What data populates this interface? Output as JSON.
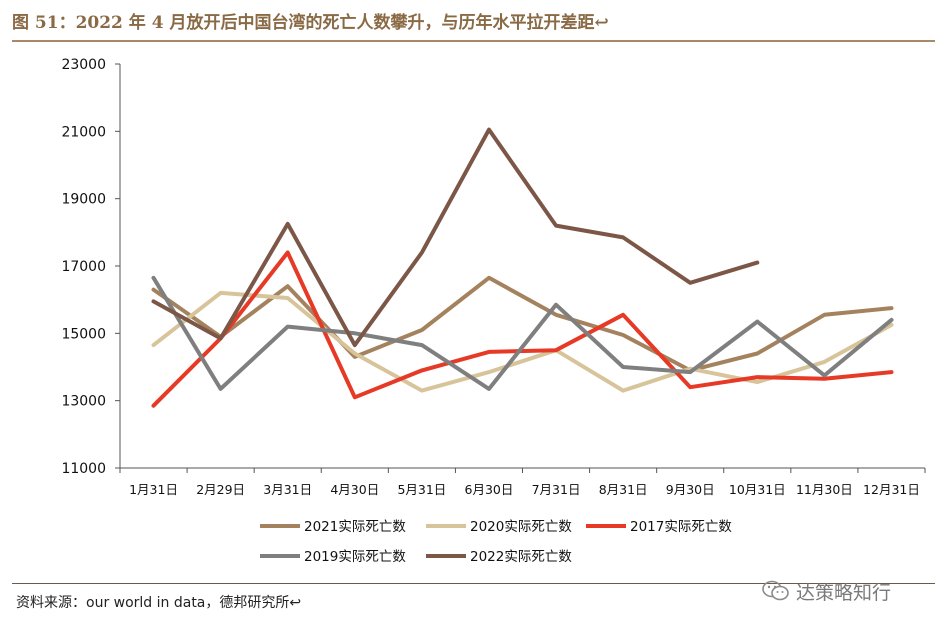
{
  "title": "图 51：2022 年 4 月放开后中国台湾的死亡人数攀升，与历年水平拉开差距↩",
  "source": "资料来源：our world in data，德邦研究所↩",
  "watermark": {
    "text": "达策略知行",
    "icon": "wechat-icon"
  },
  "chart_data": {
    "type": "line",
    "title": "",
    "xlabel": "",
    "ylabel": "",
    "ylim": [
      11000,
      23000
    ],
    "yticks": [
      11000,
      13000,
      15000,
      17000,
      19000,
      21000,
      23000
    ],
    "categories": [
      "1月31日",
      "2月29日",
      "3月31日",
      "4月30日",
      "5月31日",
      "6月30日",
      "7月31日",
      "8月31日",
      "9月30日",
      "10月31日",
      "11月30日",
      "12月31日"
    ],
    "grid": false,
    "legend_position": "bottom",
    "series": [
      {
        "name": "2021实际死亡数",
        "color": "#a5825e",
        "values": [
          16300,
          14900,
          16400,
          14300,
          15100,
          16650,
          15550,
          14950,
          13900,
          14400,
          15550,
          15750
        ]
      },
      {
        "name": "2020实际死亡数",
        "color": "#d8c49a",
        "values": [
          14650,
          16200,
          16050,
          14400,
          13300,
          13850,
          14500,
          13300,
          13950,
          13550,
          14150,
          15250
        ]
      },
      {
        "name": "2017实际死亡数",
        "color": "#e63a26",
        "values": [
          12850,
          14850,
          17400,
          13100,
          13900,
          14450,
          14500,
          15550,
          13400,
          13700,
          13650,
          13850
        ]
      },
      {
        "name": "2019实际死亡数",
        "color": "#7f7f7f",
        "values": [
          16650,
          13350,
          15200,
          15000,
          14650,
          13350,
          15850,
          14000,
          13850,
          15350,
          13750,
          15400
        ]
      },
      {
        "name": "2022实际死亡数",
        "color": "#7c5748",
        "values": [
          15950,
          14850,
          18250,
          14650,
          17400,
          21050,
          18200,
          17850,
          16500,
          17100,
          null,
          null
        ]
      }
    ]
  }
}
